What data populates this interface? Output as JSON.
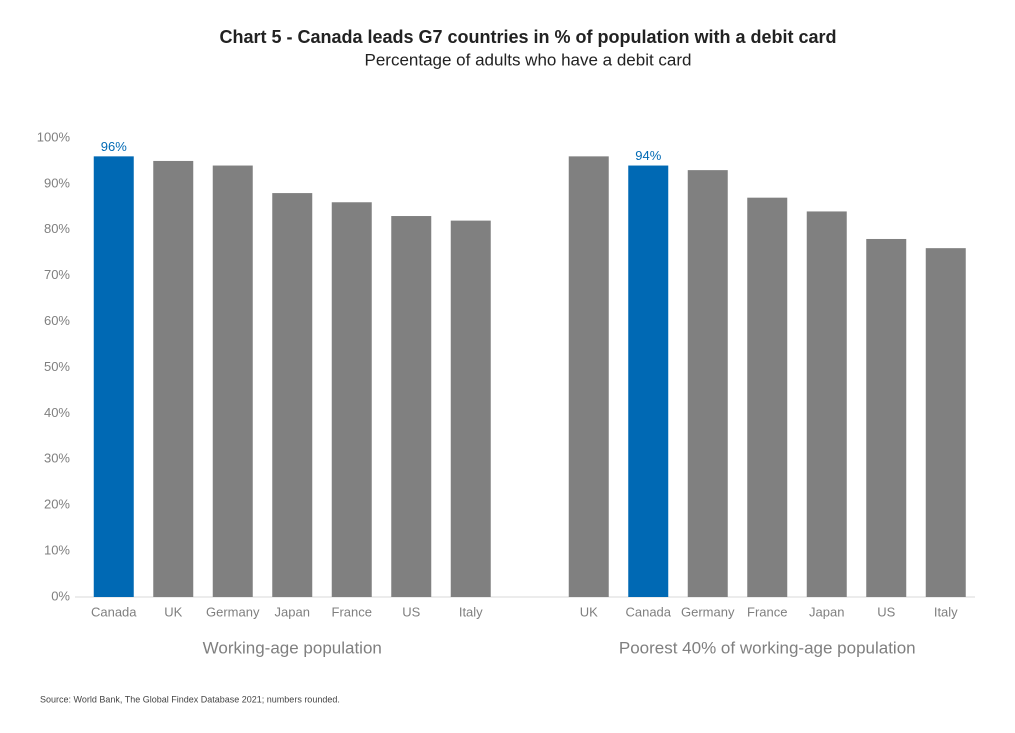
{
  "chart_data": {
    "type": "bar",
    "title": "Chart 5 - Canada leads G7 countries in % of population with a debit card",
    "subtitle": "Percentage of adults who have a debit card",
    "source": "Source: World Bank, The Global Findex Database 2021; numbers rounded.",
    "ylim": [
      0,
      100
    ],
    "yticks": [
      {
        "value": 0,
        "label": "0%"
      },
      {
        "value": 10,
        "label": "10%"
      },
      {
        "value": 20,
        "label": "20%"
      },
      {
        "value": 30,
        "label": "30%"
      },
      {
        "value": 40,
        "label": "40%"
      },
      {
        "value": 50,
        "label": "50%"
      },
      {
        "value": 60,
        "label": "60%"
      },
      {
        "value": 70,
        "label": "70%"
      },
      {
        "value": 80,
        "label": "80%"
      },
      {
        "value": 90,
        "label": "90%"
      },
      {
        "value": 100,
        "label": "100%"
      }
    ],
    "groups": [
      {
        "label": "Working-age population",
        "categories": [
          "Canada",
          "UK",
          "Germany",
          "Japan",
          "France",
          "US",
          "Italy"
        ],
        "values": [
          96,
          95,
          94,
          88,
          86,
          83,
          82
        ],
        "value_labels": [
          "96%",
          null,
          null,
          null,
          null,
          null,
          null
        ],
        "colors": [
          "#0069b4",
          "#808080",
          "#808080",
          "#808080",
          "#808080",
          "#808080",
          "#808080"
        ]
      },
      {
        "label": "Poorest 40% of working-age population",
        "categories": [
          "UK",
          "Canada",
          "Germany",
          "France",
          "Japan",
          "US",
          "Italy"
        ],
        "values": [
          96,
          94,
          93,
          87,
          84,
          78,
          76
        ],
        "value_labels": [
          null,
          "94%",
          null,
          null,
          null,
          null,
          null
        ],
        "colors": [
          "#808080",
          "#0069b4",
          "#808080",
          "#808080",
          "#808080",
          "#808080",
          "#808080"
        ]
      }
    ]
  }
}
